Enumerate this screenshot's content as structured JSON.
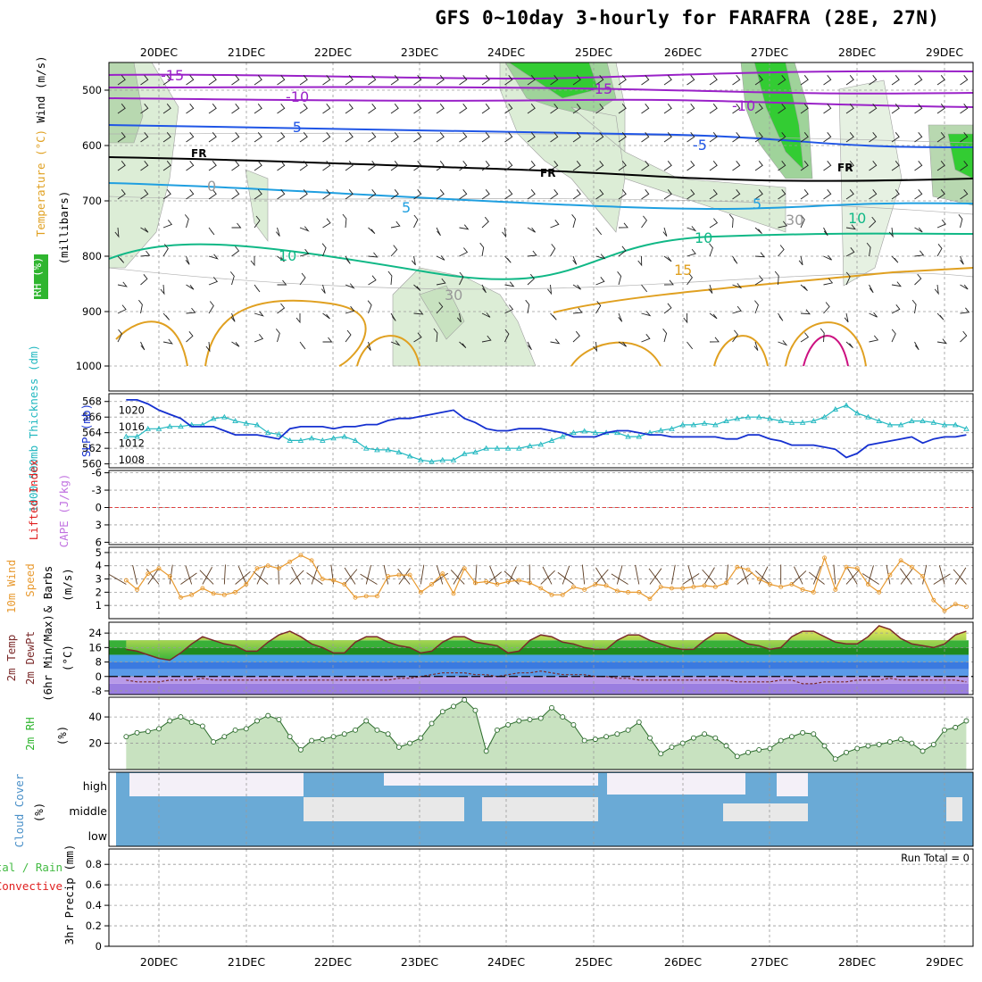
{
  "title": "GFS 0~10day 3-hourly for FARAFRA (28E, 27N)",
  "dates": [
    "20DEC",
    "21DEC",
    "22DEC",
    "23DEC",
    "24DEC",
    "25DEC",
    "26DEC",
    "27DEC",
    "28DEC",
    "29DEC"
  ],
  "colors": {
    "purple": "#9a22c8",
    "blue": "#1f55e6",
    "skyblue": "#1f9fe0",
    "teal": "#10b886",
    "orange": "#e0a020",
    "darkorange": "#e06010",
    "magenta": "#cc1080",
    "rh_green": "#2fb52f",
    "grid": "#9a9a9a",
    "cyan_line": "#22b8c0",
    "slp_blue": "#1530d0",
    "wind_orange": "#e89a30",
    "cloud_blue": "#6aaad6",
    "rain_green": "#44bb44",
    "conv_red": "#e02020"
  },
  "panels": {
    "upper": {
      "axis_labels": [
        "Wind (m/s)",
        "Temperature (°C)",
        "RH (%)",
        "(millibars)"
      ],
      "ticks": [
        "500",
        "600",
        "700",
        "800",
        "900",
        "1000"
      ],
      "contour_labels": [
        "-15",
        "-15",
        "-10",
        "-10",
        "-5",
        "-5",
        "FR",
        "FR",
        "FR",
        "0",
        "5",
        "5",
        "10",
        "10",
        "10",
        "15",
        "30",
        "30"
      ]
    },
    "thickness_slp": {
      "axis_labels": [
        "1000-500mb Thickness (dm)",
        "SLP (mb)"
      ],
      "left_ticks": [
        "568",
        "566",
        "564",
        "562",
        "560"
      ],
      "right_ticks": [
        "1020",
        "1016",
        "1012",
        "1008"
      ]
    },
    "stability": {
      "axis_labels": [
        "Lifted Index",
        "CAPE (J/kg)"
      ],
      "ticks": [
        "-6",
        "-3",
        "0",
        "3",
        "6"
      ]
    },
    "wind10m": {
      "axis_labels": [
        "10m Wind",
        "Speed",
        "& Barbs",
        "(m/s)"
      ],
      "ticks": [
        "5",
        "4",
        "3",
        "2",
        "1"
      ]
    },
    "temp2m": {
      "axis_labels": [
        "2m Temp",
        "2m DewPt",
        "(6hr Min/Max)",
        "(°C)"
      ],
      "ticks": [
        "24",
        "16",
        "8",
        "0",
        "-8"
      ]
    },
    "rh2m": {
      "axis_labels": [
        "2m RH",
        "(%)"
      ],
      "ticks": [
        "40",
        "20"
      ]
    },
    "cloud": {
      "axis_labels": [
        "Cloud Cover",
        "(%)"
      ],
      "levels": [
        "high",
        "middle",
        "low"
      ]
    },
    "precip": {
      "axis_labels": [
        "Total / Rain",
        "Convective",
        "3hr Precip (mm)"
      ],
      "ticks": [
        "0.8",
        "0.6",
        "0.4",
        "0.2",
        "0"
      ],
      "run_total": "Run Total = 0"
    }
  },
  "chart_data": {
    "type": "line",
    "x": [
      "12/19 15Z",
      "12/19 18Z",
      "12/19 21Z",
      "12/20 00Z",
      "12/20 03Z",
      "12/20 06Z",
      "12/20 09Z",
      "12/20 12Z",
      "12/20 15Z",
      "12/20 18Z",
      "12/20 21Z",
      "12/21 00Z",
      "12/21 03Z",
      "12/21 06Z",
      "12/21 09Z",
      "12/21 12Z",
      "12/21 15Z",
      "12/21 18Z",
      "12/21 21Z",
      "12/22 00Z",
      "12/22 03Z",
      "12/22 06Z",
      "12/22 09Z",
      "12/22 12Z",
      "12/22 15Z",
      "12/22 18Z",
      "12/22 21Z",
      "12/23 00Z",
      "12/23 03Z",
      "12/23 06Z",
      "12/23 09Z",
      "12/23 12Z",
      "12/23 15Z",
      "12/23 18Z",
      "12/23 21Z",
      "12/24 00Z",
      "12/24 03Z",
      "12/24 06Z",
      "12/24 09Z",
      "12/24 12Z",
      "12/24 15Z",
      "12/24 18Z",
      "12/24 21Z",
      "12/25 00Z",
      "12/25 03Z",
      "12/25 06Z",
      "12/25 09Z",
      "12/25 12Z",
      "12/25 15Z",
      "12/25 18Z",
      "12/25 21Z",
      "12/26 00Z",
      "12/26 03Z",
      "12/26 06Z",
      "12/26 09Z",
      "12/26 12Z",
      "12/26 15Z",
      "12/26 18Z",
      "12/26 21Z",
      "12/27 00Z",
      "12/27 03Z",
      "12/27 06Z",
      "12/27 09Z",
      "12/27 12Z",
      "12/27 15Z",
      "12/27 18Z",
      "12/27 21Z",
      "12/28 00Z",
      "12/28 03Z",
      "12/28 06Z",
      "12/28 09Z",
      "12/28 12Z",
      "12/28 15Z",
      "12/28 18Z",
      "12/28 21Z",
      "12/29 00Z",
      "12/29 03Z",
      "12/29 06Z"
    ],
    "series": [
      {
        "name": "1000-500mb Thickness (dm)",
        "ylim": [
          560,
          568
        ],
        "values": [
          563.5,
          563.5,
          564.5,
          564.5,
          564.8,
          564.8,
          565.0,
          565.0,
          565.8,
          566.0,
          565.5,
          565.2,
          565.0,
          564.0,
          563.8,
          563.0,
          563.0,
          563.3,
          563.0,
          563.3,
          563.5,
          563.0,
          562.0,
          561.8,
          561.8,
          561.5,
          561.0,
          560.5,
          560.3,
          560.5,
          560.5,
          561.3,
          561.5,
          562.0,
          562.0,
          562.0,
          562.0,
          562.3,
          562.5,
          563.0,
          563.5,
          564.0,
          564.2,
          564.0,
          564.0,
          564.0,
          563.5,
          563.5,
          564.0,
          564.3,
          564.5,
          565.0,
          565.0,
          565.2,
          565.0,
          565.5,
          565.8,
          566.0,
          566.0,
          565.8,
          565.5,
          565.3,
          565.3,
          565.5,
          566.0,
          567.0,
          567.5,
          566.5,
          566.0,
          565.5,
          565.0,
          565.0,
          565.5,
          565.5,
          565.3,
          565.0,
          565.0,
          564.5
        ]
      },
      {
        "name": "SLP (mb)",
        "ylim": [
          1006,
          1024
        ],
        "values": [
          1022.5,
          1022.5,
          1021.5,
          1020,
          1019,
          1018,
          1016,
          1016,
          1016,
          1015,
          1014,
          1014,
          1014,
          1013.5,
          1013,
          1015.5,
          1016,
          1016,
          1016,
          1015.5,
          1016,
          1016,
          1016.5,
          1016.5,
          1017.5,
          1018,
          1018,
          1018.5,
          1019,
          1019.5,
          1020,
          1018,
          1017,
          1015.5,
          1015,
          1015,
          1015.5,
          1015.5,
          1015.5,
          1015,
          1014.5,
          1013.5,
          1013.5,
          1013.5,
          1014.5,
          1015,
          1015,
          1014.5,
          1014,
          1014,
          1013.5,
          1013.5,
          1013.5,
          1013.5,
          1013.5,
          1013,
          1013,
          1014,
          1014,
          1013,
          1012.5,
          1011.5,
          1011.5,
          1011.5,
          1011,
          1010.5,
          1008.5,
          1009.5,
          1011.5,
          1012,
          1012.5,
          1013,
          1013.5,
          1012,
          1013,
          1013.5,
          1013.5,
          1014
        ]
      },
      {
        "name": "10m Wind Speed (m/s)",
        "ylim": [
          0,
          5
        ],
        "values": [
          2.9,
          2.2,
          3.4,
          3.8,
          3.2,
          1.6,
          1.8,
          2.3,
          1.9,
          1.8,
          2.0,
          2.6,
          3.8,
          4.0,
          3.8,
          4.3,
          4.8,
          4.4,
          3.0,
          2.9,
          2.6,
          1.6,
          1.7,
          1.7,
          3.2,
          3.3,
          3.3,
          2.0,
          2.6,
          3.4,
          1.9,
          3.8,
          2.7,
          2.8,
          2.6,
          2.8,
          2.9,
          2.7,
          2.3,
          1.8,
          1.8,
          2.4,
          2.2,
          2.6,
          2.5,
          2.1,
          2.0,
          2.0,
          1.5,
          2.4,
          2.3,
          2.3,
          2.4,
          2.5,
          2.4,
          2.7,
          3.9,
          3.7,
          3.0,
          2.6,
          2.4,
          2.6,
          2.2,
          2.0,
          4.6,
          2.2,
          3.9,
          3.8,
          2.6,
          2.0,
          3.3,
          4.4,
          3.9,
          3.2,
          1.4,
          0.6,
          1.1,
          0.9
        ]
      },
      {
        "name": "2m Temperature (°C)",
        "ylim": [
          -8,
          28
        ],
        "values": [
          15,
          14,
          12,
          10,
          9,
          13,
          18,
          22,
          20,
          18,
          17,
          14,
          14,
          19,
          23,
          25,
          22,
          18,
          16,
          13,
          13,
          19,
          22,
          22,
          19,
          17,
          16,
          13,
          14,
          19,
          22,
          22,
          19,
          18,
          17,
          13,
          14,
          20,
          23,
          22,
          19,
          18,
          16,
          15,
          15,
          20,
          23,
          23,
          20,
          18,
          16,
          15,
          15,
          20,
          24,
          24,
          21,
          18,
          17,
          15,
          16,
          22,
          25,
          25,
          22,
          19,
          18,
          18,
          22,
          28,
          26,
          21,
          18,
          17,
          16,
          18,
          23,
          25
        ]
      },
      {
        "name": "2m DewPt (°C)",
        "ylim": [
          -8,
          28
        ],
        "values": [
          -2,
          -3,
          -3,
          -3,
          -2,
          -2,
          -2,
          -1,
          -2,
          -2,
          -2,
          -2,
          -2,
          -2,
          -2,
          -2,
          -2,
          -2,
          -2,
          -2,
          -2,
          -2,
          -2,
          -2,
          -2,
          -1,
          -1,
          0,
          1,
          2,
          2,
          2,
          1,
          1,
          0,
          1,
          2,
          2,
          3,
          2,
          1,
          1,
          1,
          0,
          0,
          -1,
          -1,
          -2,
          -2,
          -2,
          -2,
          -2,
          -2,
          -2,
          -2,
          -2,
          -3,
          -3,
          -3,
          -3,
          -2,
          -2,
          -4,
          -4,
          -3,
          -3,
          -3,
          -2,
          -2,
          -2,
          -1,
          -2,
          -2,
          -2,
          -2,
          -2,
          -2,
          -3
        ]
      },
      {
        "name": "2m RH (%)",
        "ylim": [
          0,
          55
        ],
        "values": [
          25,
          28,
          29,
          31,
          37,
          40,
          36,
          33,
          21,
          25,
          30,
          31,
          37,
          41,
          38,
          25,
          15,
          22,
          23,
          25,
          27,
          30,
          37,
          30,
          27,
          17,
          20,
          24,
          35,
          44,
          48,
          53,
          45,
          14,
          30,
          34,
          37,
          38,
          39,
          47,
          40,
          34,
          22,
          23,
          25,
          27,
          30,
          36,
          24,
          12,
          17,
          20,
          24,
          27,
          24,
          18,
          10,
          13,
          15,
          16,
          22,
          25,
          28,
          27,
          18,
          8,
          13,
          16,
          18,
          19,
          21,
          23,
          20,
          14,
          19,
          30,
          32,
          37
        ]
      }
    ],
    "cloud_cover_levels": [
      "high",
      "middle",
      "low"
    ],
    "precip_total_mm": 0,
    "precip_ylim": [
      0,
      0.95
    ]
  }
}
